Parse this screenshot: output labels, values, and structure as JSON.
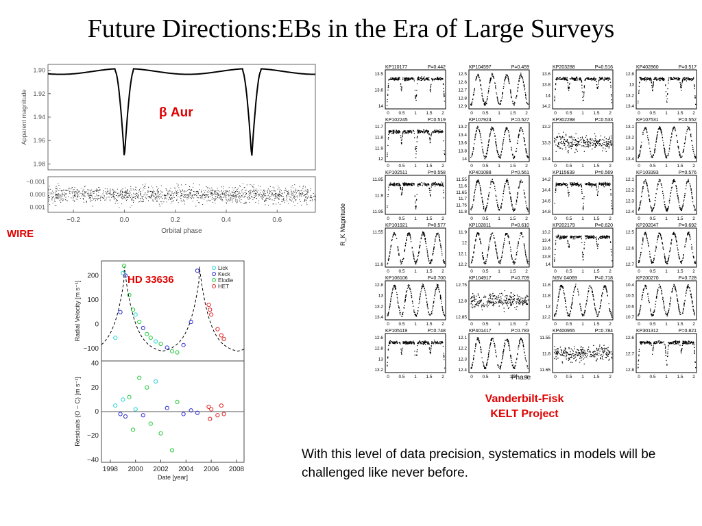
{
  "slide": {
    "title": "Future Directions:EBs in the Era of Large Surveys",
    "caption": "With this level of data precision, systematics in models will be challenged like never before."
  },
  "colors": {
    "accent_red": "#e00000",
    "lick": "#29d3d3",
    "keck": "#2b2bd6",
    "elodie": "#22c93b",
    "het": "#e02020"
  },
  "chart_data": [
    {
      "type": "scatter",
      "name_label": "WIRE",
      "star_label": "β Aur",
      "xlabel": "Orbital phase",
      "ylabel": "Apparent magnitude",
      "xlim": [
        -0.3,
        0.75
      ],
      "ylim_top": [
        1.985,
        1.895
      ],
      "xticks": [
        "−0.2",
        "0.0",
        "0.2",
        "0.4",
        "0.6"
      ],
      "xtick_values": [
        -0.2,
        0.0,
        0.2,
        0.4,
        0.6
      ],
      "yticks": [
        "1.90",
        "1.92",
        "1.94",
        "1.96",
        "1.98"
      ],
      "ytick_values": [
        1.9,
        1.92,
        1.94,
        1.96,
        1.98
      ],
      "residual_yticks": [
        "−0.001",
        "0.000",
        "0.001"
      ],
      "residual_ytick_values": [
        -0.001,
        0.0,
        0.001
      ],
      "eclipses": [
        {
          "phase": 0.0,
          "depth_mag": 1.975
        },
        {
          "phase": 0.5,
          "depth_mag": 1.975
        }
      ],
      "out_of_eclipse_mag": 1.901
    },
    {
      "type": "scatter",
      "star_label": "HD 33636",
      "xlabel": "Date [year]",
      "ylabel_top": "Radial Velocity [m s⁻¹]",
      "ylabel_bottom": "Residuals (O − C) [m s⁻¹]",
      "xticks": [
        "1998",
        "2000",
        "2002",
        "2004",
        "2006",
        "2008"
      ],
      "xtick_values": [
        1998,
        2000,
        2002,
        2004,
        2006,
        2008
      ],
      "xlim": [
        1997.3,
        2008.6
      ],
      "rv_yticks": [
        "200",
        "100",
        "0",
        "−100"
      ],
      "rv_ytick_values": [
        200,
        100,
        0,
        -100
      ],
      "rv_ylim": [
        -150,
        260
      ],
      "res_yticks": [
        "40",
        "20",
        "0",
        "−20",
        "−40"
      ],
      "res_ytick_values": [
        40,
        20,
        0,
        -20,
        -40
      ],
      "res_ylim": [
        -42,
        42
      ],
      "legend": [
        "Lick",
        "Keck",
        "Elodie",
        "HET"
      ],
      "period_years": 5.95,
      "periastron_year": 1999.1,
      "rv_points": [
        [
          1998.4,
          -55,
          "Lick"
        ],
        [
          1998.8,
          50,
          "Keck"
        ],
        [
          1999.0,
          210,
          "Lick"
        ],
        [
          1999.1,
          240,
          "Elodie"
        ],
        [
          1999.2,
          200,
          "Keck"
        ],
        [
          1999.5,
          120,
          "Elodie"
        ],
        [
          1999.8,
          60,
          "Elodie"
        ],
        [
          2000.0,
          40,
          "Lick"
        ],
        [
          2000.3,
          10,
          "Elodie"
        ],
        [
          2000.6,
          -15,
          "Keck"
        ],
        [
          2000.9,
          -40,
          "Elodie"
        ],
        [
          2001.2,
          -55,
          "Elodie"
        ],
        [
          2001.6,
          -70,
          "Lick"
        ],
        [
          2002.0,
          -80,
          "Elodie"
        ],
        [
          2002.5,
          -95,
          "Keck"
        ],
        [
          2002.9,
          -110,
          "Elodie"
        ],
        [
          2003.3,
          -115,
          "Elodie"
        ],
        [
          2003.8,
          -85,
          "Keck"
        ],
        [
          2004.4,
          10,
          "Keck"
        ],
        [
          2004.9,
          220,
          "Keck"
        ],
        [
          2005.8,
          80,
          "HET"
        ],
        [
          2005.9,
          60,
          "HET"
        ],
        [
          2006.0,
          40,
          "HET"
        ],
        [
          2006.5,
          -20,
          "HET"
        ],
        [
          2006.8,
          -45,
          "HET"
        ],
        [
          2007.0,
          -60,
          "HET"
        ]
      ],
      "res_points": [
        [
          1998.4,
          5,
          "Lick"
        ],
        [
          1998.8,
          -2,
          "Keck"
        ],
        [
          1999.0,
          10,
          "Lick"
        ],
        [
          1999.2,
          -4,
          "Keck"
        ],
        [
          1999.5,
          12,
          "Elodie"
        ],
        [
          1999.8,
          -15,
          "Elodie"
        ],
        [
          2000.0,
          2,
          "Lick"
        ],
        [
          2000.3,
          28,
          "Elodie"
        ],
        [
          2000.6,
          -3,
          "Keck"
        ],
        [
          2000.9,
          20,
          "Elodie"
        ],
        [
          2001.2,
          -10,
          "Elodie"
        ],
        [
          2001.6,
          25,
          "Lick"
        ],
        [
          2002.0,
          -18,
          "Elodie"
        ],
        [
          2002.5,
          3,
          "Keck"
        ],
        [
          2002.9,
          -32,
          "Elodie"
        ],
        [
          2003.3,
          8,
          "Elodie"
        ],
        [
          2003.8,
          -2,
          "Keck"
        ],
        [
          2004.4,
          1,
          "Keck"
        ],
        [
          2004.9,
          -1,
          "Keck"
        ],
        [
          2005.8,
          4,
          "HET"
        ],
        [
          2005.9,
          -6,
          "HET"
        ],
        [
          2006.0,
          2,
          "HET"
        ],
        [
          2006.5,
          -3,
          "HET"
        ],
        [
          2006.8,
          5,
          "HET"
        ],
        [
          2007.0,
          -2,
          "HET"
        ]
      ]
    },
    {
      "type": "line",
      "label_line1": "Vanderbilt-Fisk",
      "label_line2": "KELT Project",
      "xlabel": "Phase",
      "ylabel": "R_K Magnitude",
      "xticks": [
        "0",
        "0.5",
        "1",
        "1.5",
        "2"
      ],
      "panels": [
        {
          "name": "KP110177",
          "period": "P=0.442",
          "yticks": [
            "13.5",
            "13.6",
            "14"
          ],
          "shape": "ea"
        },
        {
          "name": "KP104597",
          "period": "P=0.459",
          "yticks": [
            "12.5",
            "12.6",
            "12.7",
            "12.8",
            "12.9"
          ],
          "shape": "ew"
        },
        {
          "name": "KP203288",
          "period": "P=0.516",
          "yticks": [
            "13.6",
            "13.8",
            "14",
            "14.2"
          ],
          "shape": "ea"
        },
        {
          "name": "KP402860",
          "period": "P=0.517",
          "yticks": [
            "12.8",
            "13",
            "13.2",
            "13.4"
          ],
          "shape": "ea"
        },
        {
          "name": "KP102245",
          "period": "P=0.519",
          "yticks": [
            "11.7",
            "11.8",
            "11.9",
            "12"
          ],
          "shape": "ea"
        },
        {
          "name": "KP107924",
          "period": "P=0.527",
          "yticks": [
            "13.2",
            "13.4",
            "13.6",
            "13.8",
            "14"
          ],
          "shape": "ew"
        },
        {
          "name": "KP302288",
          "period": "P=0.533",
          "yticks": [
            "13.2",
            "13.3",
            "13.4"
          ],
          "shape": "noise"
        },
        {
          "name": "KP107531",
          "period": "P=0.552",
          "yticks": [
            "13.1",
            "13.2",
            "13.3",
            "13.4"
          ],
          "shape": "ew"
        },
        {
          "name": "KP102511",
          "period": "P=0.558",
          "yticks": [
            "11.85",
            "11.9",
            "11.95"
          ],
          "shape": "ea"
        },
        {
          "name": "KP401088",
          "period": "P=0.561",
          "yticks": [
            "11.55",
            "11.6",
            "11.65",
            "11.7",
            "11.75",
            "11.8"
          ],
          "shape": "ew"
        },
        {
          "name": "KP115639",
          "period": "P=0.569",
          "yticks": [
            "14.2",
            "14.4",
            "14.6",
            "14.8"
          ],
          "shape": "ea"
        },
        {
          "name": "KP103393",
          "period": "P=0.576",
          "yticks": [
            "12.1",
            "12.2",
            "12.3",
            "12.4"
          ],
          "shape": "ew"
        },
        {
          "name": "KP101921",
          "period": "P=0.577",
          "yticks": [
            "11.55",
            "11.6"
          ],
          "shape": "ew"
        },
        {
          "name": "KP102811",
          "period": "P=0.610",
          "yticks": [
            "11.9",
            "12",
            "12.1",
            "12.2"
          ],
          "shape": "ew"
        },
        {
          "name": "KP202179",
          "period": "P=0.620",
          "yticks": [
            "13.2",
            "13.4",
            "13.6",
            "13.8",
            "14"
          ],
          "shape": "ea"
        },
        {
          "name": "KP202047",
          "period": "P=0.692",
          "yticks": [
            "12.5",
            "12.6",
            "12.7"
          ],
          "shape": "ew"
        },
        {
          "name": "KP106106",
          "period": "P=0.700",
          "yticks": [
            "12.8",
            "13",
            "13.2",
            "13.4"
          ],
          "shape": "ew"
        },
        {
          "name": "KP104917",
          "period": "P=0.709",
          "yticks": [
            "12.75",
            "12.8",
            "12.85"
          ],
          "shape": "noise"
        },
        {
          "name": "NSV 04069",
          "period": "P=0.718",
          "yticks": [
            "11.6",
            "11.8",
            "12",
            "12.2"
          ],
          "shape": "ew"
        },
        {
          "name": "KP200270",
          "period": "P=0.728",
          "yticks": [
            "10.4",
            "10.5",
            "10.6",
            "10.7"
          ],
          "shape": "ew"
        },
        {
          "name": "KP105119",
          "period": "P=0.748",
          "yticks": [
            "12.6",
            "12.8",
            "13",
            "13.2"
          ],
          "shape": "ea"
        },
        {
          "name": "KP401417",
          "period": "P=0.783",
          "yticks": [
            "12.1",
            "12.2",
            "12.3",
            "12.4"
          ],
          "shape": "ew"
        },
        {
          "name": "KP400955",
          "period": "P=0.784",
          "yticks": [
            "11.55",
            "11.6",
            "11.65"
          ],
          "shape": "noise"
        },
        {
          "name": "KP301312",
          "period": "P=0.821",
          "yticks": [
            "12.6",
            "12.7",
            "12.8"
          ],
          "shape": "ea"
        }
      ]
    }
  ]
}
